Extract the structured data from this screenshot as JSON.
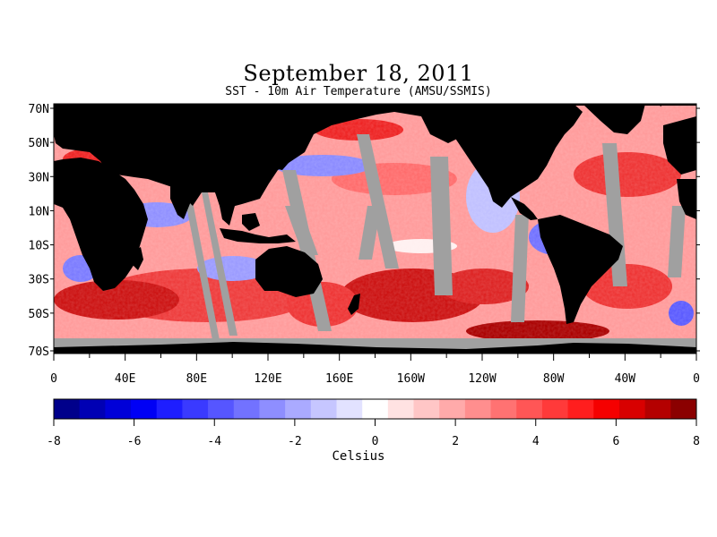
{
  "title": "September 18, 2011",
  "subtitle": "SST - 10m Air Temperature (AMSU/SSMIS)",
  "lat_labels": [
    "70N",
    "50N",
    "30N",
    "10N",
    "10S",
    "30S",
    "50S",
    "70S"
  ],
  "lon_labels": [
    "0",
    "40E",
    "80E",
    "120E",
    "160E",
    "160W",
    "120W",
    "80W",
    "40W",
    "0"
  ],
  "colorbar": {
    "unit_label": "Celsius",
    "tick_labels": [
      "-8",
      "-6",
      "-4",
      "-2",
      "0",
      "2",
      "4",
      "6",
      "8"
    ],
    "range": [
      -8,
      8
    ],
    "colors": [
      "#00008b",
      "#0000b4",
      "#0000d8",
      "#0000f5",
      "#1e1eff",
      "#3a3aff",
      "#5656ff",
      "#7272ff",
      "#8e8eff",
      "#aaaaff",
      "#c6c6ff",
      "#e2e2ff",
      "#ffffff",
      "#ffe2e2",
      "#ffc6c6",
      "#ffaaaa",
      "#ff8e8e",
      "#ff7272",
      "#ff5656",
      "#ff3a3a",
      "#ff1e1e",
      "#f50000",
      "#d80000",
      "#b40000",
      "#8b0000"
    ]
  },
  "colors": {
    "land": "#000000",
    "no_data": "#a0a0a0",
    "warm": "#e02020",
    "cold": "#3a3aff"
  }
}
